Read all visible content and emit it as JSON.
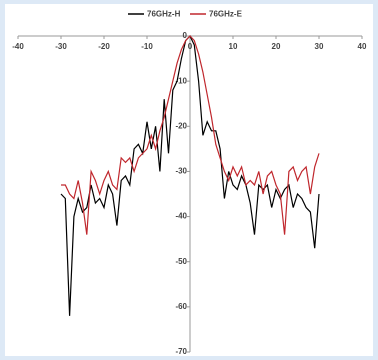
{
  "chart_data": {
    "type": "line",
    "x": [
      -30,
      -29,
      -28,
      -27,
      -26,
      -25,
      -24,
      -23,
      -22,
      -21,
      -20,
      -19,
      -18,
      -17,
      -16,
      -15,
      -14,
      -13,
      -12,
      -11,
      -10,
      -9,
      -8,
      -7,
      -6,
      -5,
      -4,
      -3,
      -2,
      -1,
      0,
      1,
      2,
      3,
      4,
      5,
      6,
      7,
      8,
      9,
      10,
      11,
      12,
      13,
      14,
      15,
      16,
      17,
      18,
      19,
      20,
      21,
      22,
      23,
      24,
      25,
      26,
      27,
      28,
      29,
      30
    ],
    "series": [
      {
        "name": "76GHz-H",
        "color": "#000000",
        "values": [
          -35,
          -36,
          -62,
          -40,
          -36,
          -39,
          -38,
          -33,
          -37,
          -36,
          -38,
          -33,
          -35,
          -42,
          -32,
          -31,
          -33,
          -25,
          -24,
          -26,
          -19,
          -25,
          -20,
          -30,
          -14,
          -26,
          -12,
          -10,
          -5,
          -1,
          0,
          -2,
          -10,
          -22,
          -19,
          -21,
          -21,
          -25,
          -36,
          -30,
          -33,
          -34,
          -31,
          -33,
          -37,
          -44,
          -33,
          -34,
          -33,
          -38,
          -34,
          -36,
          -34,
          -33,
          -38,
          -35,
          -36,
          -38,
          -39,
          -47,
          -35
        ]
      },
      {
        "name": "76GHz-E",
        "color": "#c0272d",
        "values": [
          -33,
          -33,
          -35,
          -36,
          -32,
          -37,
          -44,
          -30,
          -32,
          -35,
          -32,
          -30,
          -33,
          -34,
          -27,
          -28,
          -27,
          -30,
          -27,
          -26,
          -25,
          -22,
          -25,
          -21,
          -18,
          -14,
          -10,
          -6,
          -3,
          -1,
          0,
          -1,
          -4,
          -8,
          -13,
          -18,
          -24,
          -27,
          -30,
          -32,
          -29,
          -31,
          -29,
          -33,
          -32,
          -33,
          -30,
          -35,
          -31,
          -30,
          -33,
          -35,
          -44,
          -30,
          -29,
          -32,
          -30,
          -29,
          -35,
          -29,
          -26
        ]
      }
    ],
    "xlim": [
      -40,
      40
    ],
    "ylim": [
      -70,
      0
    ],
    "xticks": [
      -40,
      -30,
      -20,
      -10,
      0,
      10,
      20,
      30,
      40
    ],
    "yticks": [
      0,
      -10,
      -20,
      -30,
      -40,
      -50,
      -60,
      -70
    ],
    "legend": "top"
  }
}
